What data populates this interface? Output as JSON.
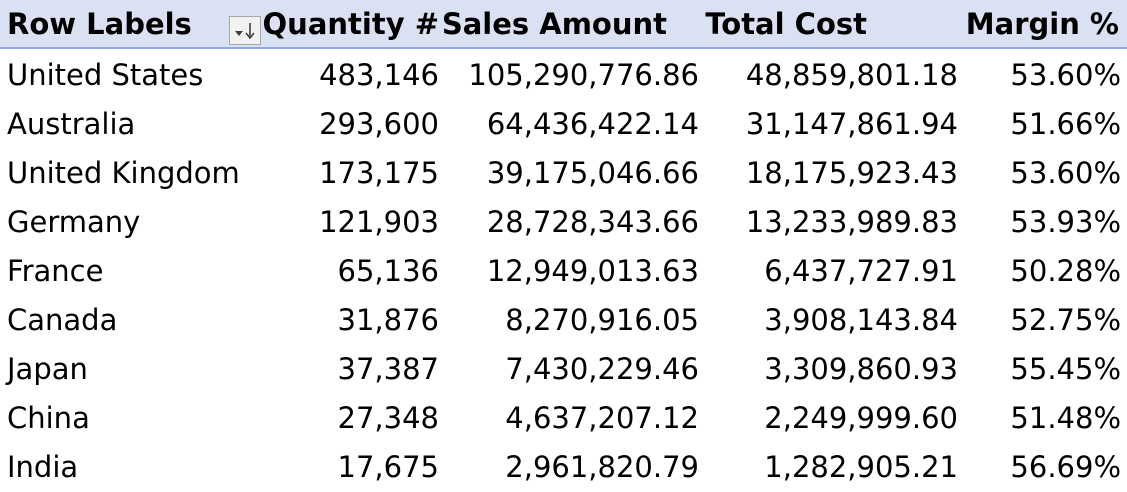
{
  "headers": {
    "row_labels": "Row Labels",
    "quantity": "Quantity #",
    "sales_amount": "Sales Amount",
    "total_cost": "Total Cost",
    "margin": "Margin %"
  },
  "filter_icon": "sort-filter-dropdown-icon",
  "colors": {
    "header_bg": "#d9e1f2",
    "header_border": "#8ea9db"
  },
  "rows": [
    {
      "label": "United States",
      "quantity": "483,146",
      "sales": "105,290,776.86",
      "cost": "48,859,801.18",
      "margin": "53.60%"
    },
    {
      "label": "Australia",
      "quantity": "293,600",
      "sales": "64,436,422.14",
      "cost": "31,147,861.94",
      "margin": "51.66%"
    },
    {
      "label": "United Kingdom",
      "quantity": "173,175",
      "sales": "39,175,046.66",
      "cost": "18,175,923.43",
      "margin": "53.60%"
    },
    {
      "label": "Germany",
      "quantity": "121,903",
      "sales": "28,728,343.66",
      "cost": "13,233,989.83",
      "margin": "53.93%"
    },
    {
      "label": "France",
      "quantity": "65,136",
      "sales": "12,949,013.63",
      "cost": "6,437,727.91",
      "margin": "50.28%"
    },
    {
      "label": "Canada",
      "quantity": "31,876",
      "sales": "8,270,916.05",
      "cost": "3,908,143.84",
      "margin": "52.75%"
    },
    {
      "label": "Japan",
      "quantity": "37,387",
      "sales": "7,430,229.46",
      "cost": "3,309,860.93",
      "margin": "55.45%"
    },
    {
      "label": "China",
      "quantity": "27,348",
      "sales": "4,637,207.12",
      "cost": "2,249,999.60",
      "margin": "51.48%"
    },
    {
      "label": "India",
      "quantity": "17,675",
      "sales": "2,961,820.79",
      "cost": "1,282,905.21",
      "margin": "56.69%"
    }
  ]
}
